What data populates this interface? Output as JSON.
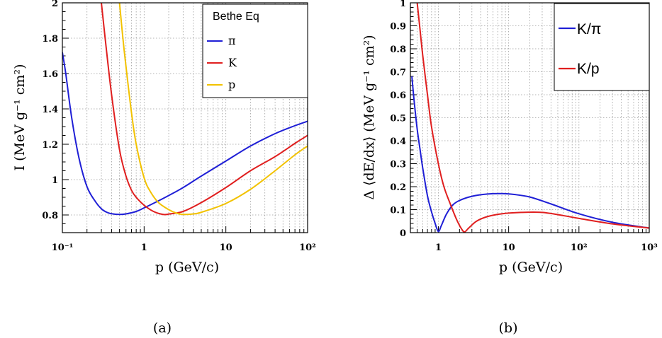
{
  "chart_data": [
    {
      "type": "line",
      "panel": "a",
      "caption": "(a)",
      "xlabel": "p (GeV/c)",
      "ylabel": "I (MeV g⁻¹ cm²)",
      "x_scale": "log",
      "xlim": [
        0.1,
        100
      ],
      "ylim": [
        0.7,
        2.0
      ],
      "x_tick_labels": [
        "10⁻¹",
        "1",
        "10",
        "10²"
      ],
      "y_tick_labels": [
        "0.8",
        "1",
        "1.2",
        "1.4",
        "1.6",
        "1.8",
        "2"
      ],
      "grid": true,
      "legend": {
        "title": "Bethe Eq",
        "placement": "top-right",
        "entries": [
          "π",
          "K",
          "p"
        ]
      },
      "series": [
        {
          "name": "π",
          "color": "#1f1fd6",
          "points": [
            [
              0.1,
              1.72
            ],
            [
              0.11,
              1.6
            ],
            [
              0.13,
              1.35
            ],
            [
              0.16,
              1.12
            ],
            [
              0.2,
              0.96
            ],
            [
              0.25,
              0.88
            ],
            [
              0.3,
              0.835
            ],
            [
              0.35,
              0.815
            ],
            [
              0.4,
              0.807
            ],
            [
              0.5,
              0.803
            ],
            [
              0.6,
              0.806
            ],
            [
              0.8,
              0.82
            ],
            [
              1,
              0.84
            ],
            [
              1.5,
              0.88
            ],
            [
              2,
              0.91
            ],
            [
              3,
              0.955
            ],
            [
              5,
              1.02
            ],
            [
              10,
              1.105
            ],
            [
              20,
              1.19
            ],
            [
              40,
              1.26
            ],
            [
              70,
              1.305
            ],
            [
              100,
              1.33
            ]
          ]
        },
        {
          "name": "K",
          "color": "#e01f1f",
          "points": [
            [
              0.3,
              2.0
            ],
            [
              0.33,
              1.82
            ],
            [
              0.4,
              1.48
            ],
            [
              0.5,
              1.17
            ],
            [
              0.6,
              1.02
            ],
            [
              0.7,
              0.94
            ],
            [
              0.8,
              0.9
            ],
            [
              1,
              0.855
            ],
            [
              1.3,
              0.82
            ],
            [
              1.7,
              0.803
            ],
            [
              2,
              0.805
            ],
            [
              3,
              0.82
            ],
            [
              5,
              0.87
            ],
            [
              10,
              0.955
            ],
            [
              20,
              1.05
            ],
            [
              40,
              1.13
            ],
            [
              70,
              1.205
            ],
            [
              100,
              1.25
            ]
          ]
        },
        {
          "name": "p",
          "color": "#f2c200",
          "points": [
            [
              0.5,
              2.0
            ],
            [
              0.55,
              1.8
            ],
            [
              0.6,
              1.64
            ],
            [
              0.7,
              1.38
            ],
            [
              0.8,
              1.2
            ],
            [
              1,
              1.01
            ],
            [
              1.2,
              0.93
            ],
            [
              1.5,
              0.87
            ],
            [
              2,
              0.83
            ],
            [
              2.5,
              0.81
            ],
            [
              3,
              0.803
            ],
            [
              4,
              0.806
            ],
            [
              5,
              0.815
            ],
            [
              10,
              0.865
            ],
            [
              20,
              0.945
            ],
            [
              40,
              1.05
            ],
            [
              70,
              1.14
            ],
            [
              100,
              1.19
            ]
          ]
        }
      ]
    },
    {
      "type": "line",
      "panel": "b",
      "caption": "(b)",
      "xlabel": "p (GeV/c)",
      "ylabel": "Δ ⟨dE/dx⟩ (MeV g⁻¹ cm²)",
      "x_scale": "log",
      "xlim": [
        0.4,
        1000
      ],
      "ylim": [
        0,
        1.0
      ],
      "x_tick_labels": [
        "1",
        "10",
        "10²",
        "10³"
      ],
      "y_tick_labels": [
        "0",
        "0.1",
        "0.2",
        "0.3",
        "0.4",
        "0.5",
        "0.6",
        "0.7",
        "0.8",
        "0.9",
        "1"
      ],
      "grid": true,
      "legend": {
        "placement": "top-right",
        "entries": [
          "K/π",
          "K/p"
        ]
      },
      "series": [
        {
          "name": "K/π",
          "color": "#1f1fd6",
          "points": [
            [
              0.42,
              0.68
            ],
            [
              0.45,
              0.58
            ],
            [
              0.5,
              0.45
            ],
            [
              0.55,
              0.36
            ],
            [
              0.6,
              0.28
            ],
            [
              0.7,
              0.16
            ],
            [
              0.8,
              0.09
            ],
            [
              0.9,
              0.04
            ],
            [
              1,
              0.005
            ],
            [
              1.1,
              0.03
            ],
            [
              1.3,
              0.08
            ],
            [
              1.6,
              0.12
            ],
            [
              2,
              0.14
            ],
            [
              3,
              0.158
            ],
            [
              5,
              0.168
            ],
            [
              8,
              0.17
            ],
            [
              12,
              0.166
            ],
            [
              20,
              0.155
            ],
            [
              40,
              0.125
            ],
            [
              100,
              0.082
            ],
            [
              300,
              0.045
            ],
            [
              1000,
              0.02
            ]
          ]
        },
        {
          "name": "K/p",
          "color": "#e01f1f",
          "points": [
            [
              0.5,
              1.0
            ],
            [
              0.55,
              0.88
            ],
            [
              0.6,
              0.77
            ],
            [
              0.7,
              0.6
            ],
            [
              0.8,
              0.46
            ],
            [
              1,
              0.3
            ],
            [
              1.2,
              0.2
            ],
            [
              1.5,
              0.12
            ],
            [
              1.8,
              0.06
            ],
            [
              2.1,
              0.02
            ],
            [
              2.35,
              0.003
            ],
            [
              2.7,
              0.02
            ],
            [
              3.5,
              0.05
            ],
            [
              5,
              0.07
            ],
            [
              8,
              0.082
            ],
            [
              15,
              0.088
            ],
            [
              30,
              0.088
            ],
            [
              60,
              0.074
            ],
            [
              100,
              0.062
            ],
            [
              300,
              0.038
            ],
            [
              1000,
              0.02
            ]
          ]
        }
      ]
    }
  ]
}
